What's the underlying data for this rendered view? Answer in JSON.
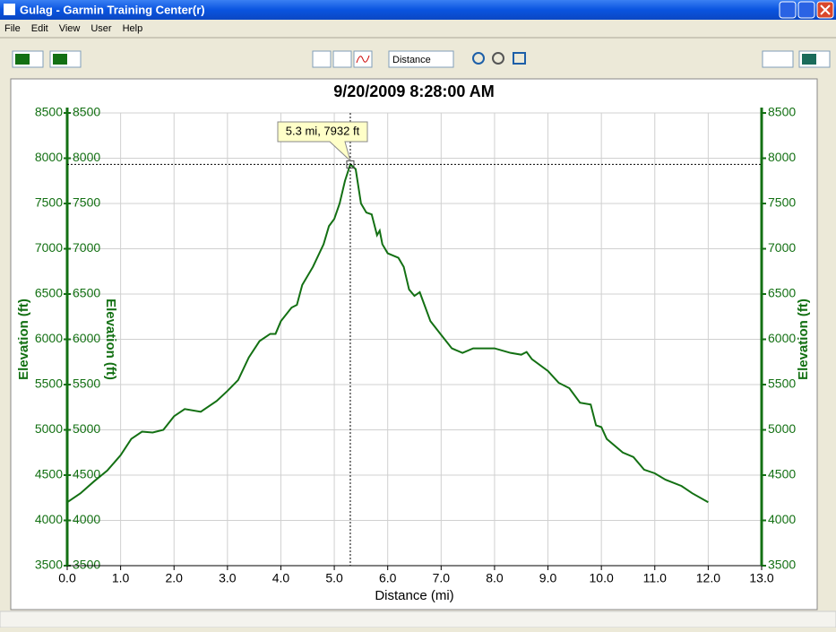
{
  "window": {
    "title": "Gulag - Garmin Training Center(r)",
    "menu": [
      "File",
      "Edit",
      "View",
      "User",
      "Help"
    ],
    "toolbar": {
      "x_axis_select": "Distance"
    }
  },
  "chart_data": {
    "type": "line",
    "title": "9/20/2009 8:28:00 AM",
    "xlabel": "Distance (mi)",
    "ylabel": "Elevation (ft)",
    "series": [
      {
        "name": "Elevation",
        "color": "#137013",
        "x": [
          0,
          0.25,
          0.5,
          0.75,
          1.0,
          1.2,
          1.4,
          1.6,
          1.8,
          2.0,
          2.2,
          2.5,
          2.8,
          3.0,
          3.2,
          3.4,
          3.6,
          3.8,
          3.9,
          4.0,
          4.2,
          4.3,
          4.4,
          4.6,
          4.8,
          4.9,
          5.0,
          5.1,
          5.2,
          5.3,
          5.4,
          5.5,
          5.6,
          5.7,
          5.8,
          5.85,
          5.9,
          6.0,
          6.2,
          6.3,
          6.4,
          6.5,
          6.6,
          6.8,
          7.0,
          7.2,
          7.4,
          7.6,
          8.0,
          8.3,
          8.5,
          8.6,
          8.7,
          9.0,
          9.2,
          9.4,
          9.6,
          9.8,
          9.9,
          10.0,
          10.1,
          10.4,
          10.6,
          10.8,
          11.0,
          11.2,
          11.5,
          11.7,
          12.0
        ],
        "values": [
          4200,
          4300,
          4430,
          4550,
          4720,
          4900,
          4980,
          4970,
          5000,
          5150,
          5230,
          5200,
          5320,
          5430,
          5550,
          5800,
          5980,
          6060,
          6060,
          6200,
          6350,
          6380,
          6600,
          6800,
          7050,
          7250,
          7330,
          7500,
          7750,
          7932,
          7880,
          7500,
          7400,
          7380,
          7150,
          7200,
          7050,
          6950,
          6900,
          6800,
          6550,
          6480,
          6520,
          6200,
          6050,
          5900,
          5850,
          5900,
          5900,
          5850,
          5830,
          5860,
          5780,
          5650,
          5520,
          5460,
          5300,
          5280,
          5050,
          5030,
          4900,
          4750,
          4700,
          4560,
          4520,
          4450,
          4380,
          4300,
          4200
        ]
      }
    ],
    "xlim": [
      0,
      13
    ],
    "ylim": [
      3500,
      8500
    ],
    "xticks": [
      {
        "value": 0,
        "label": "0.0"
      },
      {
        "value": 1,
        "label": "1.0"
      },
      {
        "value": 2,
        "label": "2.0"
      },
      {
        "value": 3,
        "label": "3.0"
      },
      {
        "value": 4,
        "label": "4.0"
      },
      {
        "value": 5,
        "label": "5.0"
      },
      {
        "value": 6,
        "label": "6.0"
      },
      {
        "value": 7,
        "label": "7.0"
      },
      {
        "value": 8,
        "label": "8.0"
      },
      {
        "value": 9,
        "label": "9.0"
      },
      {
        "value": 10,
        "label": "10.0"
      },
      {
        "value": 11,
        "label": "11.0"
      },
      {
        "value": 12,
        "label": "12.0"
      },
      {
        "value": 13,
        "label": "13.0"
      }
    ],
    "yticks": [
      3500,
      4000,
      4500,
      5000,
      5500,
      6000,
      6500,
      7000,
      7500,
      8000,
      8500
    ],
    "grid": true,
    "cursor": {
      "x": 5.3,
      "y": 7932,
      "label": "5.3 mi, 7932 ft"
    }
  }
}
